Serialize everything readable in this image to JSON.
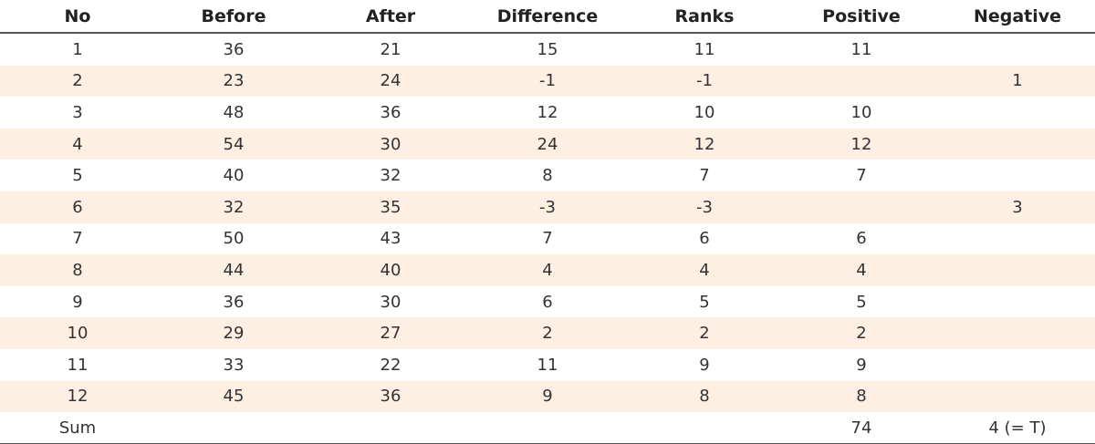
{
  "table": {
    "headers": [
      "No",
      "Before",
      "After",
      "Difference",
      "Ranks",
      "Positive",
      "Negative"
    ],
    "rows": [
      [
        "1",
        "36",
        "21",
        "15",
        "11",
        "11",
        ""
      ],
      [
        "2",
        "23",
        "24",
        "-1",
        "-1",
        "",
        "1"
      ],
      [
        "3",
        "48",
        "36",
        "12",
        "10",
        "10",
        ""
      ],
      [
        "4",
        "54",
        "30",
        "24",
        "12",
        "12",
        ""
      ],
      [
        "5",
        "40",
        "32",
        "8",
        "7",
        "7",
        ""
      ],
      [
        "6",
        "32",
        "35",
        "-3",
        "-3",
        "",
        "3"
      ],
      [
        "7",
        "50",
        "43",
        "7",
        "6",
        "6",
        ""
      ],
      [
        "8",
        "44",
        "40",
        "4",
        "4",
        "4",
        ""
      ],
      [
        "9",
        "36",
        "30",
        "6",
        "5",
        "5",
        ""
      ],
      [
        "10",
        "29",
        "27",
        "2",
        "2",
        "2",
        ""
      ],
      [
        "11",
        "33",
        "22",
        "11",
        "9",
        "9",
        ""
      ],
      [
        "12",
        "45",
        "36",
        "9",
        "8",
        "8",
        ""
      ]
    ],
    "footer": [
      "Sum",
      "",
      "",
      "",
      "",
      "74",
      "4 (= T)"
    ]
  },
  "colors": {
    "stripe": "#fdf0e2",
    "rule": "#555555"
  }
}
